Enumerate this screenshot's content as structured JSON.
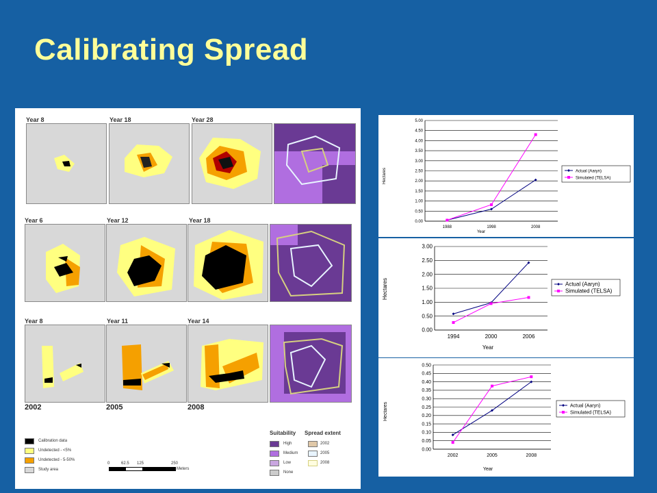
{
  "slide": {
    "title": "Calibrating Spread"
  },
  "map_panel": {
    "rows": [
      {
        "labels": [
          "Year 8",
          "Year 18",
          "Year 28"
        ]
      },
      {
        "labels": [
          "Year 6",
          "Year 12",
          "Year 18"
        ]
      },
      {
        "labels": [
          "Year 8",
          "Year 11",
          "Year 14"
        ]
      }
    ],
    "bottom_years": [
      "2002",
      "2005",
      "2008"
    ],
    "legend_left": [
      {
        "label": "Calibration data",
        "color": "#000000"
      },
      {
        "label": "Undetected - <5%",
        "color": "#ffff80"
      },
      {
        "label": "Undetected - 5-50%",
        "color": "#f5a000"
      },
      {
        "label": "Study area",
        "color": "#d8d8d8"
      }
    ],
    "scale_bar": {
      "ticks": [
        "0",
        "62.5",
        "125",
        "250"
      ],
      "unit": "Meters"
    },
    "suitability": {
      "heading": "Suitability",
      "items": [
        {
          "label": "High",
          "color": "#6a3a94"
        },
        {
          "label": "Medium",
          "color": "#b06ee0"
        },
        {
          "label": "Low",
          "color": "#c9a6e0"
        },
        {
          "label": "None",
          "color": "#cccccc"
        }
      ]
    },
    "spread_extent": {
      "heading": "Spread extent",
      "items": [
        {
          "label": "2002",
          "color": "#e0c8a8"
        },
        {
          "label": "2005",
          "color": "#e8f4ff"
        },
        {
          "label": "2008",
          "color": "#d6d080"
        }
      ]
    }
  },
  "chart_data": [
    {
      "type": "line",
      "categories": [
        "1988",
        "1998",
        "2008"
      ],
      "ylabel": "Hectares",
      "xlabel": "Year",
      "ylim": [
        0,
        5
      ],
      "yticks": [
        "0.00",
        "0.50",
        "1.00",
        "1.50",
        "2.00",
        "2.50",
        "3.00",
        "3.50",
        "4.00",
        "4.50",
        "5.00"
      ],
      "series": [
        {
          "name": "Actual (Aaryn)",
          "values": [
            0.05,
            0.6,
            2.05
          ],
          "color": "#000080"
        },
        {
          "name": "Simulated (TELSA)",
          "values": [
            0.05,
            0.82,
            4.3
          ],
          "color": "#ff00ff"
        }
      ],
      "legend": "right"
    },
    {
      "type": "line",
      "categories": [
        "1994",
        "2000",
        "2006"
      ],
      "ylabel": "Hectares",
      "xlabel": "Year",
      "ylim": [
        0,
        3
      ],
      "yticks": [
        "0.00",
        "0.50",
        "1.00",
        "1.50",
        "2.00",
        "2.50",
        "3.00"
      ],
      "series": [
        {
          "name": "Actual (Aaryn)",
          "values": [
            0.58,
            0.98,
            2.42
          ],
          "color": "#000080"
        },
        {
          "name": "Simulated (TELSA)",
          "values": [
            0.27,
            0.95,
            1.17
          ],
          "color": "#ff00ff"
        }
      ],
      "legend": "right"
    },
    {
      "type": "line",
      "categories": [
        "2002",
        "2005",
        "2008"
      ],
      "ylabel": "Hectares",
      "xlabel": "Year",
      "ylim": [
        0,
        0.5
      ],
      "yticks": [
        "0.00",
        "0.05",
        "0.10",
        "0.15",
        "0.20",
        "0.25",
        "0.30",
        "0.35",
        "0.40",
        "0.45",
        "0.50"
      ],
      "series": [
        {
          "name": "Actual (Aaryn)",
          "values": [
            0.085,
            0.23,
            0.4
          ],
          "color": "#000080"
        },
        {
          "name": "Simulated (TELSA)",
          "values": [
            0.04,
            0.375,
            0.43
          ],
          "color": "#ff00ff"
        }
      ],
      "legend": "right"
    }
  ]
}
